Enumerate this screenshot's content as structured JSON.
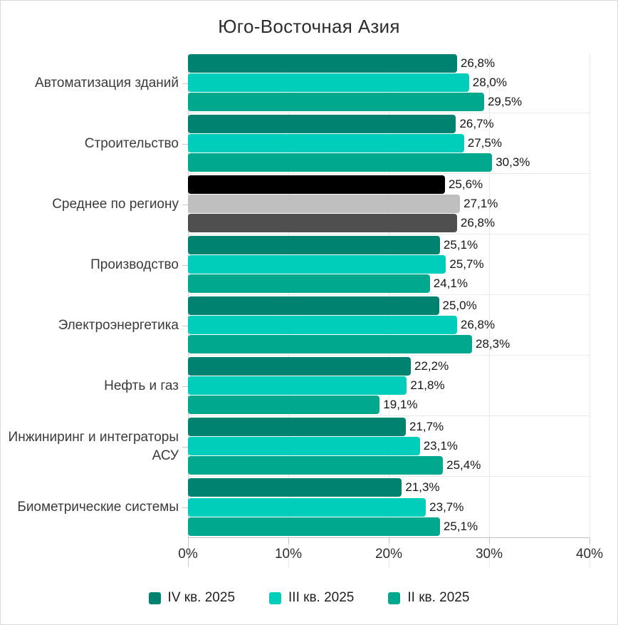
{
  "title": "Юго-Восточная Азия",
  "chart_data": {
    "type": "bar",
    "orientation": "horizontal",
    "title": "Юго-Восточная Азия",
    "unit": "%",
    "legend_position": "bottom",
    "x_axis": {
      "min": 0,
      "max": 40,
      "ticks": [
        "0%",
        "10%",
        "20%",
        "30%",
        "40%"
      ],
      "grid": true
    },
    "series": [
      {
        "name": "IV кв. 2025",
        "color": "#008270"
      },
      {
        "name": "III кв. 2025",
        "color": "#00CDBA"
      },
      {
        "name": "II кв. 2025",
        "color": "#00A98D"
      }
    ],
    "highlight_row_colors": [
      "#000000",
      "#BFBFBF",
      "#4F4F4F"
    ],
    "rows": [
      {
        "category": "Автоматизация зданий",
        "values": [
          26.8,
          28.0,
          29.5
        ],
        "labels": [
          "26,8%",
          "28,0%",
          "29,5%"
        ]
      },
      {
        "category": "Строительство",
        "values": [
          26.7,
          27.5,
          30.3
        ],
        "labels": [
          "26,7%",
          "27,5%",
          "30,3%"
        ]
      },
      {
        "category": "Среднее по региону",
        "values": [
          25.6,
          27.1,
          26.8
        ],
        "labels": [
          "25,6%",
          "27,1%",
          "26,8%"
        ],
        "highlight": true
      },
      {
        "category": "Производство",
        "values": [
          25.1,
          25.7,
          24.1
        ],
        "labels": [
          "25,1%",
          "25,7%",
          "24,1%"
        ]
      },
      {
        "category": "Электроэнергетика",
        "values": [
          25.0,
          26.8,
          28.3
        ],
        "labels": [
          "25,0%",
          "26,8%",
          "28,3%"
        ]
      },
      {
        "category": "Нефть и газ",
        "values": [
          22.2,
          21.8,
          19.1
        ],
        "labels": [
          "22,2%",
          "21,8%",
          "19,1%"
        ]
      },
      {
        "category": "Инжиниринг и интеграторы АСУ",
        "values": [
          21.7,
          23.1,
          25.4
        ],
        "labels": [
          "21,7%",
          "23,1%",
          "25,4%"
        ]
      },
      {
        "category": "Биометрические системы",
        "values": [
          21.3,
          23.7,
          25.1
        ],
        "labels": [
          "21,3%",
          "23,7%",
          "25,1%"
        ]
      }
    ]
  }
}
